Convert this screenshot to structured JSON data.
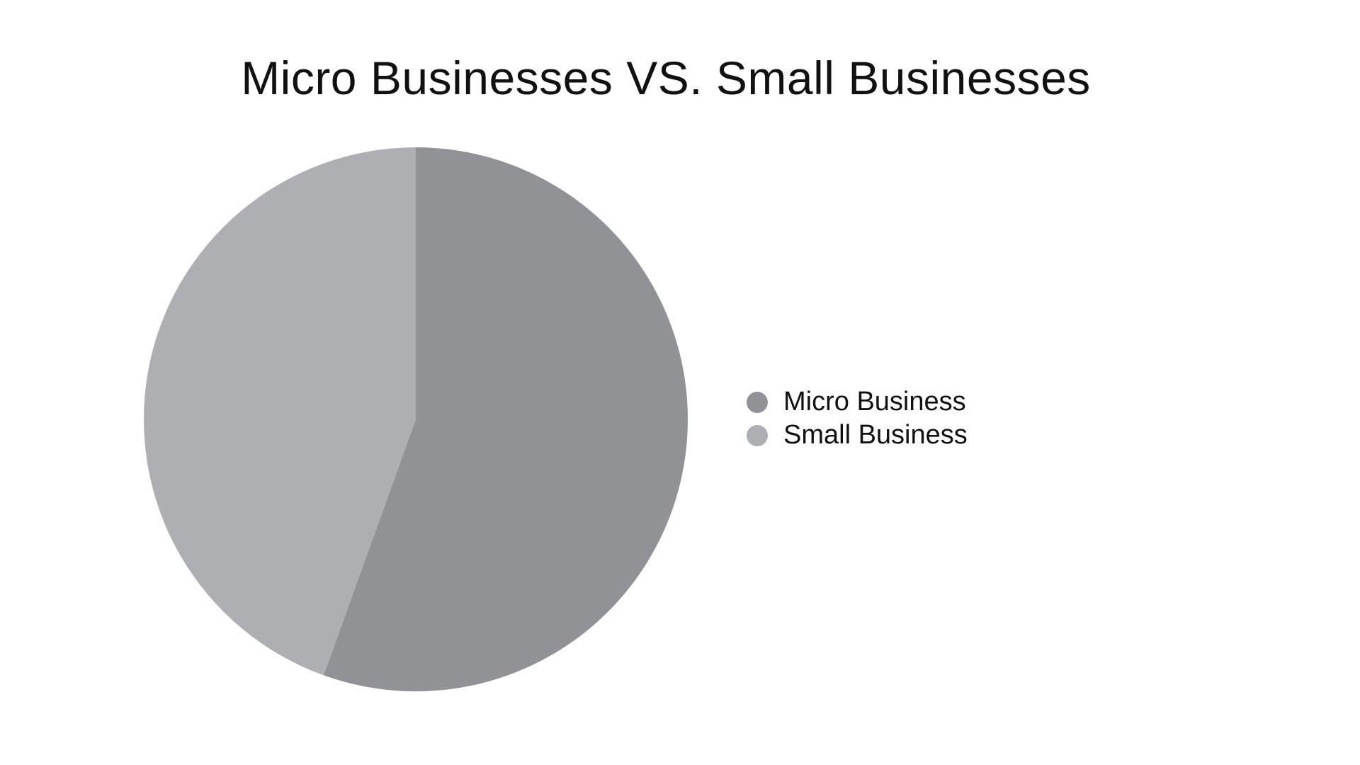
{
  "chart_data": {
    "type": "pie",
    "title": "Micro Businesses VS. Small Businesses",
    "categories": [
      "Micro Business",
      "Small Business"
    ],
    "values": [
      55.5,
      44.5
    ],
    "colors": [
      "#909296",
      "#aeafb2"
    ],
    "start_angle": "12 o'clock, clockwise",
    "legend_position": "right"
  }
}
